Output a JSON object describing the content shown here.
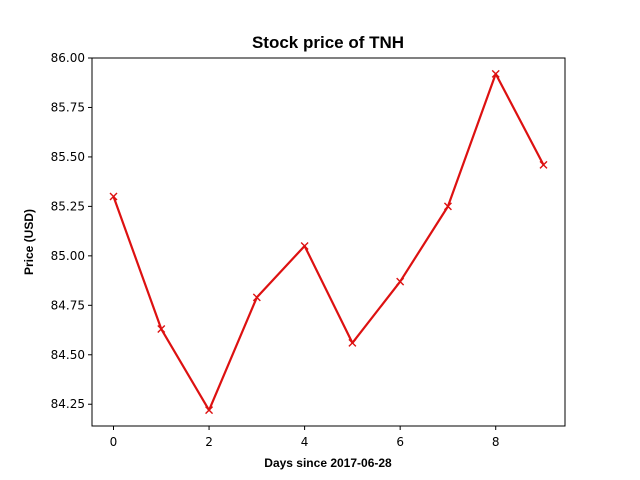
{
  "chart_data": {
    "type": "line",
    "title": "Stock price of TNH",
    "xlabel": "Days since 2017-06-28",
    "ylabel": "Price (USD)",
    "x": [
      0,
      1,
      2,
      3,
      4,
      5,
      6,
      7,
      8,
      9
    ],
    "series": [
      {
        "values": [
          85.3,
          84.63,
          84.22,
          84.79,
          85.05,
          84.56,
          84.87,
          85.25,
          85.92,
          85.46
        ],
        "color": "#dd1111",
        "marker": "x"
      }
    ],
    "xlim": [
      -0.45,
      9.45
    ],
    "ylim": [
      84.14,
      86.0
    ],
    "xticks": [
      0,
      2,
      4,
      6,
      8
    ],
    "xtick_labels": [
      "0",
      "2",
      "4",
      "6",
      "8"
    ],
    "yticks": [
      84.25,
      84.5,
      84.75,
      85.0,
      85.25,
      85.5,
      85.75,
      86.0
    ],
    "ytick_labels": [
      "84.25",
      "84.50",
      "84.75",
      "85.00",
      "85.25",
      "85.50",
      "85.75",
      "86.00"
    ],
    "grid": false,
    "legend": false
  }
}
